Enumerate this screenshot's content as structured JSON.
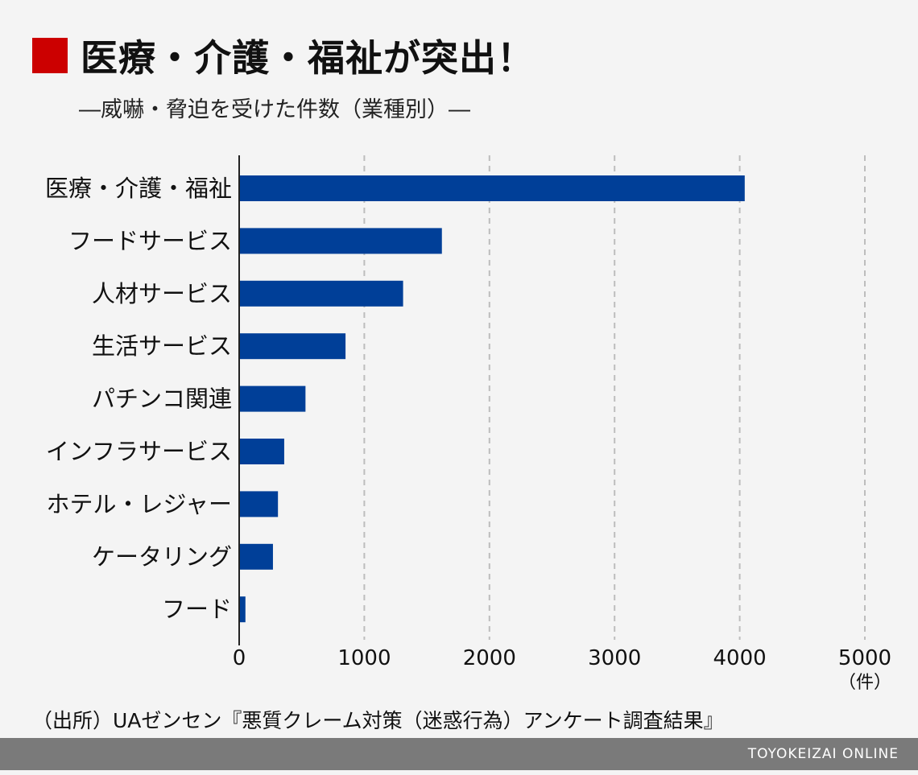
{
  "header": {
    "title": "医療・介護・福祉が突出！",
    "subtitle": "―威嚇・脅迫を受けた件数（業種別）―"
  },
  "colors": {
    "bar": "#003f98",
    "marker": "#cc0000",
    "footer": "#7a7a7a",
    "grid": "#bdbdbd"
  },
  "chart_data": {
    "type": "bar",
    "orientation": "horizontal",
    "categories": [
      "医療・介護・福祉",
      "フードサービス",
      "人材サービス",
      "生活サービス",
      "パチンコ関連",
      "インフラサービス",
      "ホテル・レジャー",
      "ケータリング",
      "フード"
    ],
    "values": [
      4040,
      1620,
      1310,
      850,
      530,
      360,
      310,
      270,
      50
    ],
    "xlim": [
      0,
      5000
    ],
    "xticks": [
      "0",
      "1000",
      "2000",
      "3000",
      "4000",
      "5000"
    ],
    "unit": "（件）",
    "grid": "vertical dashed"
  },
  "source": "（出所）UAゼンセン『悪質クレーム対策（迷惑行為）アンケート調査結果』",
  "footer": {
    "brand": "TOYOKEIZAI ONLINE"
  }
}
